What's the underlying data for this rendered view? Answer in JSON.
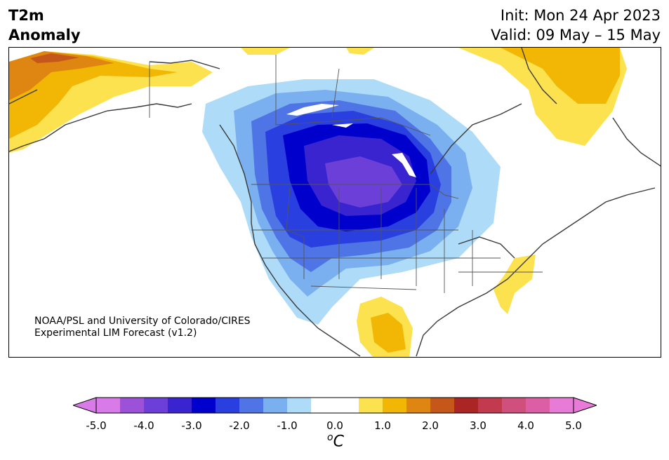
{
  "header": {
    "var_line1": "T2m",
    "var_line2": "Anomaly",
    "init": "Init: Mon 24 Apr 2023",
    "valid": "Valid: 09 May – 15 May"
  },
  "credit": {
    "line1": "NOAA/PSL and University of Colorado/CIRES",
    "line2": "Experimental LIM Forecast (v1.2)"
  },
  "colorbar": {
    "unit_base": "C",
    "unit_sup": "o",
    "ticks": [
      "-5.0",
      "-4.0",
      "-3.0",
      "-2.0",
      "-1.0",
      "0.0",
      "1.0",
      "2.0",
      "3.0",
      "4.0",
      "5.0"
    ],
    "colors": [
      "#d87be8",
      "#9b52d8",
      "#6b3fd8",
      "#3a24d0",
      "#0000cd",
      "#2a3fdf",
      "#4f74e6",
      "#7aaff0",
      "#aedcf8",
      "#ffffff",
      "#ffffff",
      "#fde24f",
      "#f2b705",
      "#de8611",
      "#c6571a",
      "#ab2525",
      "#c13a4e",
      "#cf4f7d",
      "#dc5fa6",
      "#e87ad8"
    ],
    "under_color": "#d87be8",
    "over_color": "#e87ad8"
  },
  "legend_colors": {
    "coast": "#3a3a3a",
    "warm_light": "#fde24f",
    "warm_mid": "#f2b705",
    "warm_dark": "#de8611",
    "cold_1": "#aedcf8",
    "cold_2": "#7aaff0",
    "cold_3": "#4f74e6",
    "cold_4": "#2a3fdf",
    "cold_5": "#0000cd",
    "cold_6": "#3a24d0",
    "cold_7": "#6b3fd8"
  }
}
